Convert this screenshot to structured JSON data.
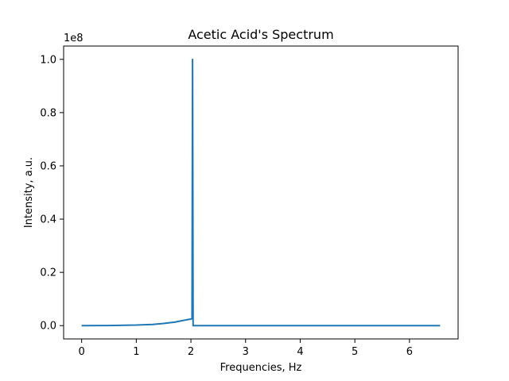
{
  "chart_data": {
    "type": "line",
    "title": "Acetic Acid's Spectrum",
    "xlabel": "Frequencies, Hz",
    "ylabel": "Intensity, a.u.",
    "y_offset_label": "1e8",
    "y_scale": 100000000,
    "xlim": [
      -0.33,
      6.89
    ],
    "ylim": [
      -5000000,
      105000000
    ],
    "x_ticks": [
      0,
      1,
      2,
      3,
      4,
      5,
      6
    ],
    "x_tick_labels": [
      "0",
      "1",
      "2",
      "3",
      "4",
      "5",
      "6"
    ],
    "y_ticks": [
      0,
      20000000,
      40000000,
      60000000,
      80000000,
      100000000
    ],
    "y_tick_labels": [
      "0.0",
      "0.2",
      "0.4",
      "0.6",
      "0.8",
      "1.0"
    ],
    "grid": false,
    "series": [
      {
        "color": "#1f77b4",
        "x": [
          0,
          0.5,
          1.0,
          1.3,
          1.5,
          1.7,
          1.8,
          1.9,
          1.95,
          2.0,
          2.02,
          2.03,
          2.04,
          2.05,
          3.0,
          4.0,
          5.0,
          6.0,
          6.56
        ],
        "y": [
          0,
          40000,
          200000,
          450000,
          800000,
          1300000,
          1700000,
          2100000,
          2300000,
          2450000,
          2600000,
          100000000,
          0,
          0,
          0,
          0,
          0,
          0,
          0
        ]
      }
    ]
  }
}
